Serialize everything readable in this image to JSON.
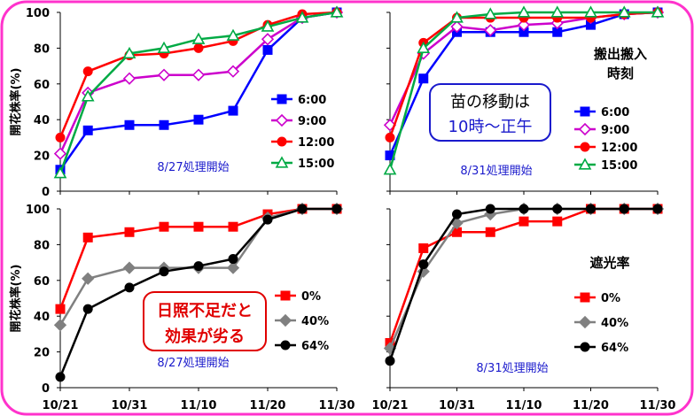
{
  "colors": {
    "frame": "#ff33cc",
    "callout_blue": "#1a1acc",
    "callout_red": "#e00000"
  },
  "shared": {
    "x_ticks": [
      "10/21",
      "10/31",
      "11/10",
      "11/20",
      "11/30"
    ],
    "ylabel": "開花株率(%)",
    "y_ticks_top": [
      "0",
      "20",
      "40",
      "60",
      "80",
      "100"
    ],
    "y_ticks_bottom": [
      "0",
      "20",
      "40",
      "60",
      "80",
      "100"
    ]
  },
  "chart_data": [
    {
      "id": "tl",
      "type": "line",
      "x_unit": "date",
      "x_ticks": [
        "10/21",
        "10/31",
        "11/10",
        "11/20",
        "11/30"
      ],
      "xlim": [
        "2000-10-21",
        "2000-11-30"
      ],
      "ylim": [
        0,
        100
      ],
      "ylabel": "開花株率(%)",
      "y_ticks": [
        "0",
        "20",
        "40",
        "60",
        "80",
        "100"
      ],
      "start_label": "8/27処理開始",
      "legend_title": "",
      "x": [
        "2000-10-21",
        "2000-10-25",
        "2000-10-31",
        "2000-11-05",
        "2000-11-10",
        "2000-11-15",
        "2000-11-20",
        "2000-11-25",
        "2000-11-30"
      ],
      "series": [
        {
          "name": "6:00",
          "color": "#0000ff",
          "marker": "square",
          "values": [
            12,
            34,
            37,
            37,
            40,
            45,
            79,
            97,
            100
          ]
        },
        {
          "name": "9:00",
          "color": "#cc00cc",
          "marker": "diamond-open",
          "values": [
            21,
            55,
            63,
            65,
            65,
            67,
            85,
            97,
            100
          ]
        },
        {
          "name": "12:00",
          "color": "#ff0000",
          "marker": "circle",
          "values": [
            30,
            67,
            76,
            77,
            80,
            84,
            93,
            99,
            100
          ]
        },
        {
          "name": "15:00",
          "color": "#00aa44",
          "marker": "triangle-open",
          "values": [
            10,
            53,
            77,
            80,
            85,
            87,
            92,
            97,
            100
          ]
        }
      ]
    },
    {
      "id": "tr",
      "type": "line",
      "x_unit": "date",
      "x_ticks": [
        "10/21",
        "10/31",
        "11/10",
        "11/20",
        "11/30"
      ],
      "xlim": [
        "2000-10-21",
        "2000-11-30"
      ],
      "ylim": [
        0,
        100
      ],
      "ylabel": "",
      "y_ticks": [],
      "start_label": "8/31処理開始",
      "legend_title": "搬出搬入\n時刻",
      "x": [
        "2000-10-21",
        "2000-10-26",
        "2000-10-31",
        "2000-11-05",
        "2000-11-10",
        "2000-11-15",
        "2000-11-20",
        "2000-11-25",
        "2000-11-30"
      ],
      "series": [
        {
          "name": "6:00",
          "color": "#0000ff",
          "marker": "square",
          "values": [
            20,
            63,
            89,
            89,
            89,
            89,
            93,
            99,
            100
          ]
        },
        {
          "name": "9:00",
          "color": "#cc00cc",
          "marker": "diamond-open",
          "values": [
            37,
            77,
            92,
            90,
            93,
            94,
            97,
            99,
            100
          ]
        },
        {
          "name": "12:00",
          "color": "#ff0000",
          "marker": "circle",
          "values": [
            30,
            83,
            97,
            97,
            97,
            97,
            97,
            99,
            100
          ]
        },
        {
          "name": "15:00",
          "color": "#00aa44",
          "marker": "triangle-open",
          "values": [
            12,
            80,
            97,
            99,
            100,
            100,
            100,
            100,
            100
          ]
        }
      ]
    },
    {
      "id": "bl",
      "type": "line",
      "x_unit": "date",
      "x_ticks": [
        "10/21",
        "10/31",
        "11/10",
        "11/20",
        "11/30"
      ],
      "xlim": [
        "2000-10-21",
        "2000-11-30"
      ],
      "ylim": [
        0,
        100
      ],
      "ylabel": "開花株率(%)",
      "y_ticks": [
        "0",
        "20",
        "40",
        "60",
        "80",
        "100"
      ],
      "start_label": "8/27処理開始",
      "legend_title": "",
      "x": [
        "2000-10-21",
        "2000-10-25",
        "2000-10-31",
        "2000-11-05",
        "2000-11-10",
        "2000-11-15",
        "2000-11-20",
        "2000-11-25",
        "2000-11-30"
      ],
      "series": [
        {
          "name": "0%",
          "color": "#ff0000",
          "marker": "square",
          "values": [
            44,
            84,
            87,
            90,
            90,
            90,
            97,
            100,
            100
          ]
        },
        {
          "name": "40%",
          "color": "#808080",
          "marker": "diamond",
          "values": [
            35,
            61,
            67,
            67,
            67,
            67,
            95,
            100,
            100
          ]
        },
        {
          "name": "64%",
          "color": "#000000",
          "marker": "circle",
          "values": [
            6,
            44,
            56,
            65,
            68,
            72,
            94,
            100,
            100
          ]
        }
      ]
    },
    {
      "id": "br",
      "type": "line",
      "x_unit": "date",
      "x_ticks": [
        "10/21",
        "10/31",
        "11/10",
        "11/20",
        "11/30"
      ],
      "xlim": [
        "2000-10-21",
        "2000-11-30"
      ],
      "ylim": [
        0,
        100
      ],
      "ylabel": "",
      "y_ticks": [],
      "start_label": "8/31処理開始",
      "legend_title": "遮光率",
      "x": [
        "2000-10-21",
        "2000-10-26",
        "2000-10-31",
        "2000-11-05",
        "2000-11-10",
        "2000-11-15",
        "2000-11-20",
        "2000-11-25",
        "2000-11-30"
      ],
      "series": [
        {
          "name": "0%",
          "color": "#ff0000",
          "marker": "square",
          "values": [
            25,
            78,
            87,
            87,
            93,
            93,
            100,
            100,
            100
          ]
        },
        {
          "name": "40%",
          "color": "#808080",
          "marker": "diamond",
          "values": [
            22,
            65,
            92,
            97,
            100,
            100,
            100,
            100,
            100
          ]
        },
        {
          "name": "64%",
          "color": "#000000",
          "marker": "circle",
          "values": [
            15,
            69,
            97,
            100,
            100,
            100,
            100,
            100,
            100
          ]
        }
      ]
    }
  ],
  "callouts": {
    "blue_line1": "苗の移動は",
    "blue_line2": "10時～正午",
    "red_line1": "日照不足だと",
    "red_line2": "効果が劣る"
  }
}
